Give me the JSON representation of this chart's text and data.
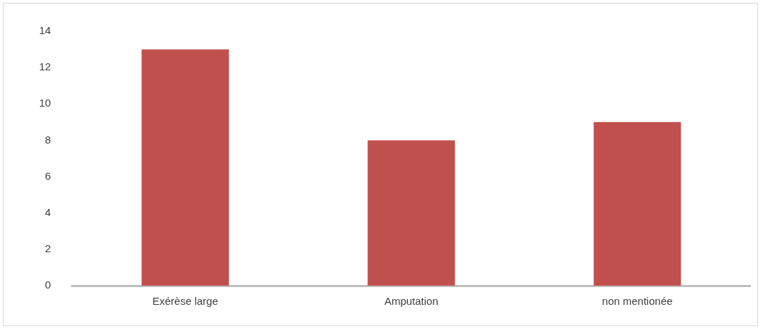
{
  "chart_data": {
    "type": "bar",
    "categories": [
      "Exérèse large",
      "Amputation",
      "non mentionée"
    ],
    "values": [
      13,
      8,
      9
    ],
    "color": "#c0504d",
    "ylim": [
      0,
      14
    ],
    "yticks": [
      0,
      2,
      4,
      6,
      8,
      10,
      12,
      14
    ],
    "grid": false,
    "legend": false
  }
}
